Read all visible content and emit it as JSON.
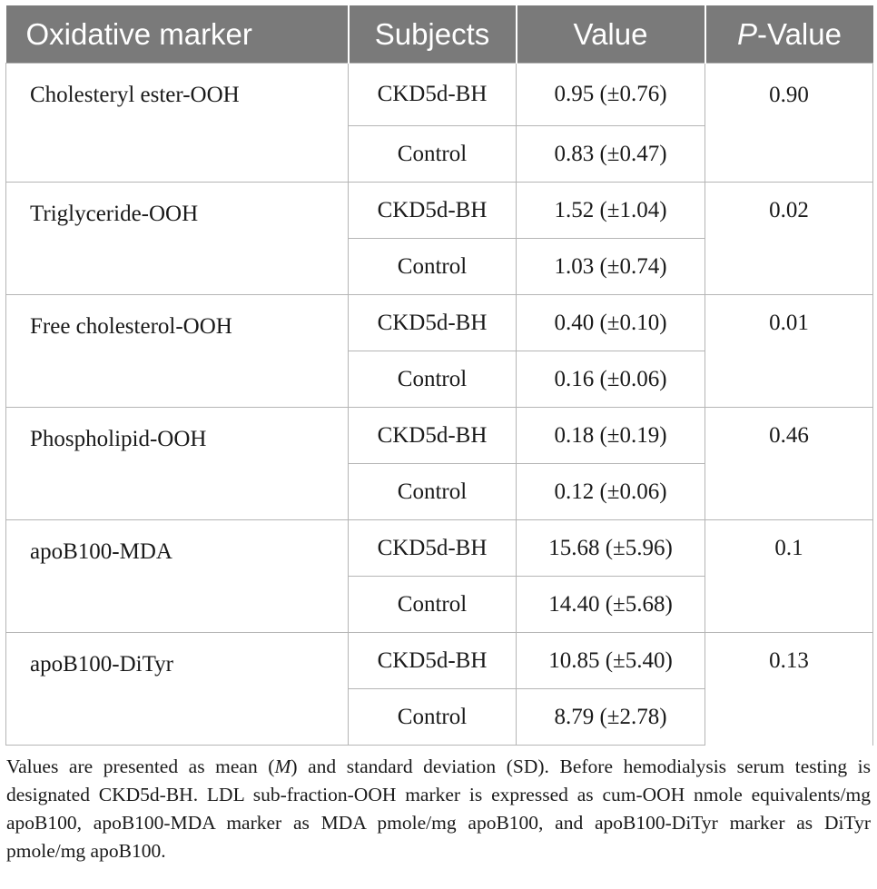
{
  "headers": {
    "marker": "Oxidative marker",
    "subjects": "Subjects",
    "value": "Value",
    "pvalue_italic": "P",
    "pvalue_rest": "-Value"
  },
  "rows": [
    {
      "marker": "Cholesteryl ester-OOH",
      "s1": "CKD5d-BH",
      "v1": "0.95 (±0.76)",
      "p": "0.90",
      "s2": "Control",
      "v2": "0.83 (±0.47)"
    },
    {
      "marker": "Triglyceride-OOH",
      "s1": "CKD5d-BH",
      "v1": "1.52 (±1.04)",
      "p": "0.02",
      "s2": "Control",
      "v2": "1.03 (±0.74)"
    },
    {
      "marker": "Free cholesterol-OOH",
      "s1": "CKD5d-BH",
      "v1": "0.40 (±0.10)",
      "p": "0.01",
      "s2": "Control",
      "v2": "0.16 (±0.06)"
    },
    {
      "marker": "Phospholipid-OOH",
      "s1": "CKD5d-BH",
      "v1": "0.18 (±0.19)",
      "p": "0.46",
      "s2": "Control",
      "v2": "0.12 (±0.06)"
    },
    {
      "marker": "apoB100-MDA",
      "s1": "CKD5d-BH",
      "v1": "15.68 (±5.96)",
      "p": "0.1",
      "s2": "Control",
      "v2": "14.40 (±5.68)"
    },
    {
      "marker": "apoB100-DiTyr",
      "s1": "CKD5d-BH",
      "v1": "10.85 (±5.40)",
      "p": "0.13",
      "s2": "Control",
      "v2": "8.79 (±2.78)"
    }
  ],
  "footnote": {
    "t1": "Values are presented as mean (",
    "m": "M",
    "t2": ") and standard deviation (SD). Before hemodialysis serum testing is designated CKD5d-BH. LDL sub-fraction-OOH marker is expressed as cum-OOH nmole equivalents/mg apoB100, apoB100-MDA marker as MDA pmole/mg apoB100, and apoB100-DiTyr marker as DiTyr pmole/mg apoB100."
  }
}
